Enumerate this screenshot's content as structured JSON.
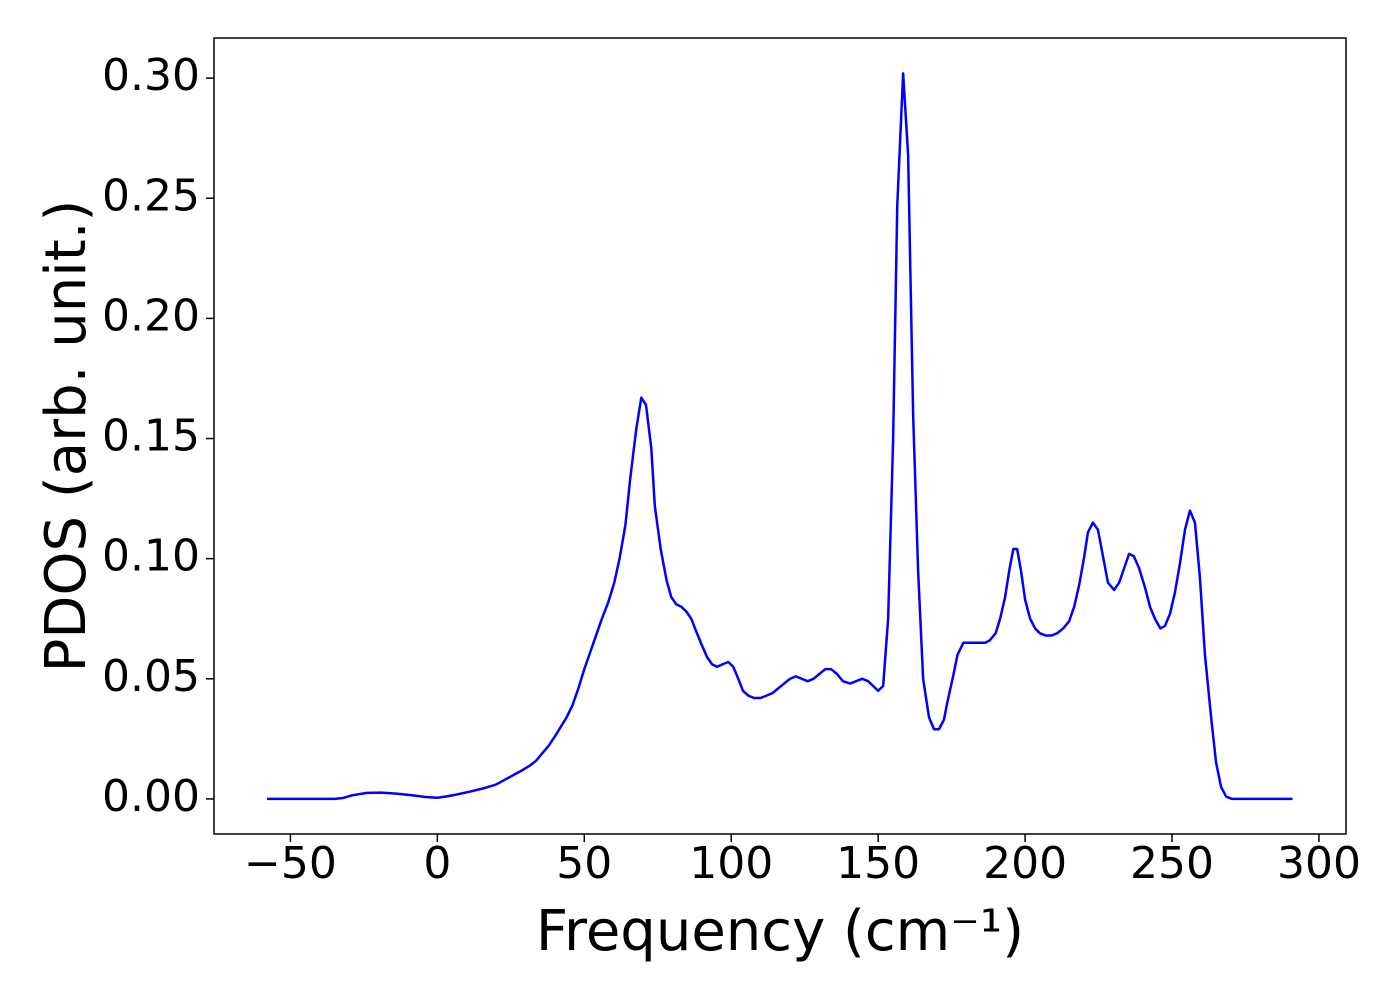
{
  "chart_data": {
    "type": "line",
    "xlabel": "Frequency (cm⁻¹)",
    "ylabel": "PDOS (arb. unit.)",
    "x": [
      -58,
      -35,
      -32,
      -29,
      -24,
      -19,
      -14,
      -9,
      -4,
      0,
      3,
      6,
      11,
      16,
      20,
      23,
      26,
      29,
      31.6,
      33.7,
      35.7,
      37.8,
      40,
      42,
      44,
      46,
      48,
      50,
      52,
      54,
      56,
      58.2,
      60.2,
      62,
      64,
      65.6,
      67.7,
      69.4,
      71,
      72.8,
      74,
      76,
      78,
      79.6,
      81.3,
      83,
      84.7,
      86.4,
      88,
      90,
      91.8,
      93.5,
      95.2,
      97,
      99,
      100.7,
      102.4,
      104,
      105.8,
      107.8,
      110,
      112,
      114,
      116,
      118,
      120,
      122,
      124,
      126,
      128,
      130,
      132,
      134,
      136,
      138,
      140.5,
      142.5,
      144.6,
      146.6,
      148.3,
      150,
      151.7,
      153.4,
      155.1,
      156.5,
      158.5,
      160.2,
      161.9,
      163.6,
      165.3,
      167.3,
      169,
      170.7,
      172.4,
      173.5,
      175.5,
      177,
      179,
      183,
      186.4,
      188,
      190,
      191.5,
      193.2,
      194.6,
      196,
      197.3,
      198.6,
      200,
      201.7,
      203.4,
      205,
      207,
      209,
      211,
      213,
      215,
      216.7,
      218.4,
      220,
      221.4,
      223.1,
      224.8,
      226.5,
      228.2,
      230.3,
      232,
      233.7,
      235.4,
      237,
      238.8,
      240.8,
      242.5,
      244.2,
      246,
      247.6,
      249.3,
      251,
      252.7,
      254.4,
      256.1,
      257.8,
      259.5,
      261.2,
      263.3,
      265,
      266.7,
      268.4,
      270.4,
      291
    ],
    "series": [
      {
        "color": "#0000ff",
        "values": [
          0,
          0,
          0.0004,
          0.0015,
          0.0025,
          0.0026,
          0.0022,
          0.0016,
          0.0008,
          0.0005,
          0.001,
          0.0017,
          0.003,
          0.0045,
          0.006,
          0.008,
          0.01,
          0.012,
          0.014,
          0.016,
          0.019,
          0.022,
          0.026,
          0.03,
          0.034,
          0.039,
          0.046,
          0.054,
          0.061,
          0.068,
          0.075,
          0.082,
          0.09,
          0.1,
          0.114,
          0.133,
          0.154,
          0.167,
          0.164,
          0.146,
          0.122,
          0.104,
          0.091,
          0.084,
          0.081,
          0.08,
          0.078,
          0.075,
          0.07,
          0.064,
          0.059,
          0.056,
          0.055,
          0.056,
          0.057,
          0.055,
          0.05,
          0.045,
          0.043,
          0.042,
          0.042,
          0.043,
          0.044,
          0.046,
          0.048,
          0.05,
          0.051,
          0.05,
          0.049,
          0.05,
          0.052,
          0.054,
          0.054,
          0.052,
          0.049,
          0.048,
          0.049,
          0.05,
          0.049,
          0.047,
          0.045,
          0.047,
          0.075,
          0.15,
          0.247,
          0.302,
          0.268,
          0.16,
          0.095,
          0.05,
          0.034,
          0.029,
          0.029,
          0.033,
          0.04,
          0.051,
          0.06,
          0.065,
          0.065,
          0.065,
          0.066,
          0.069,
          0.075,
          0.084,
          0.095,
          0.104,
          0.104,
          0.095,
          0.083,
          0.075,
          0.071,
          0.069,
          0.068,
          0.068,
          0.069,
          0.071,
          0.074,
          0.08,
          0.089,
          0.1,
          0.111,
          0.115,
          0.112,
          0.101,
          0.09,
          0.087,
          0.09,
          0.096,
          0.102,
          0.101,
          0.096,
          0.088,
          0.08,
          0.075,
          0.071,
          0.072,
          0.077,
          0.086,
          0.098,
          0.112,
          0.12,
          0.115,
          0.092,
          0.06,
          0.034,
          0.015,
          0.005,
          0.001,
          0,
          0
        ]
      }
    ],
    "xlim": [
      -76,
      309.2
    ],
    "ylim": [
      -0.0146,
      0.3167
    ],
    "xticks": [
      {
        "value": -50,
        "label": "−50"
      },
      0,
      50,
      100,
      150,
      200,
      250,
      300
    ],
    "yticks": [
      {
        "value": 0,
        "label": "0.00"
      },
      {
        "value": 0.05,
        "label": "0.05"
      },
      {
        "value": 0.1,
        "label": "0.10"
      },
      {
        "value": 0.15,
        "label": "0.15"
      },
      {
        "value": 0.2,
        "label": "0.20"
      },
      {
        "value": 0.25,
        "label": "0.25"
      },
      {
        "value": 0.3,
        "label": "0.30"
      }
    ],
    "grid": false
  }
}
